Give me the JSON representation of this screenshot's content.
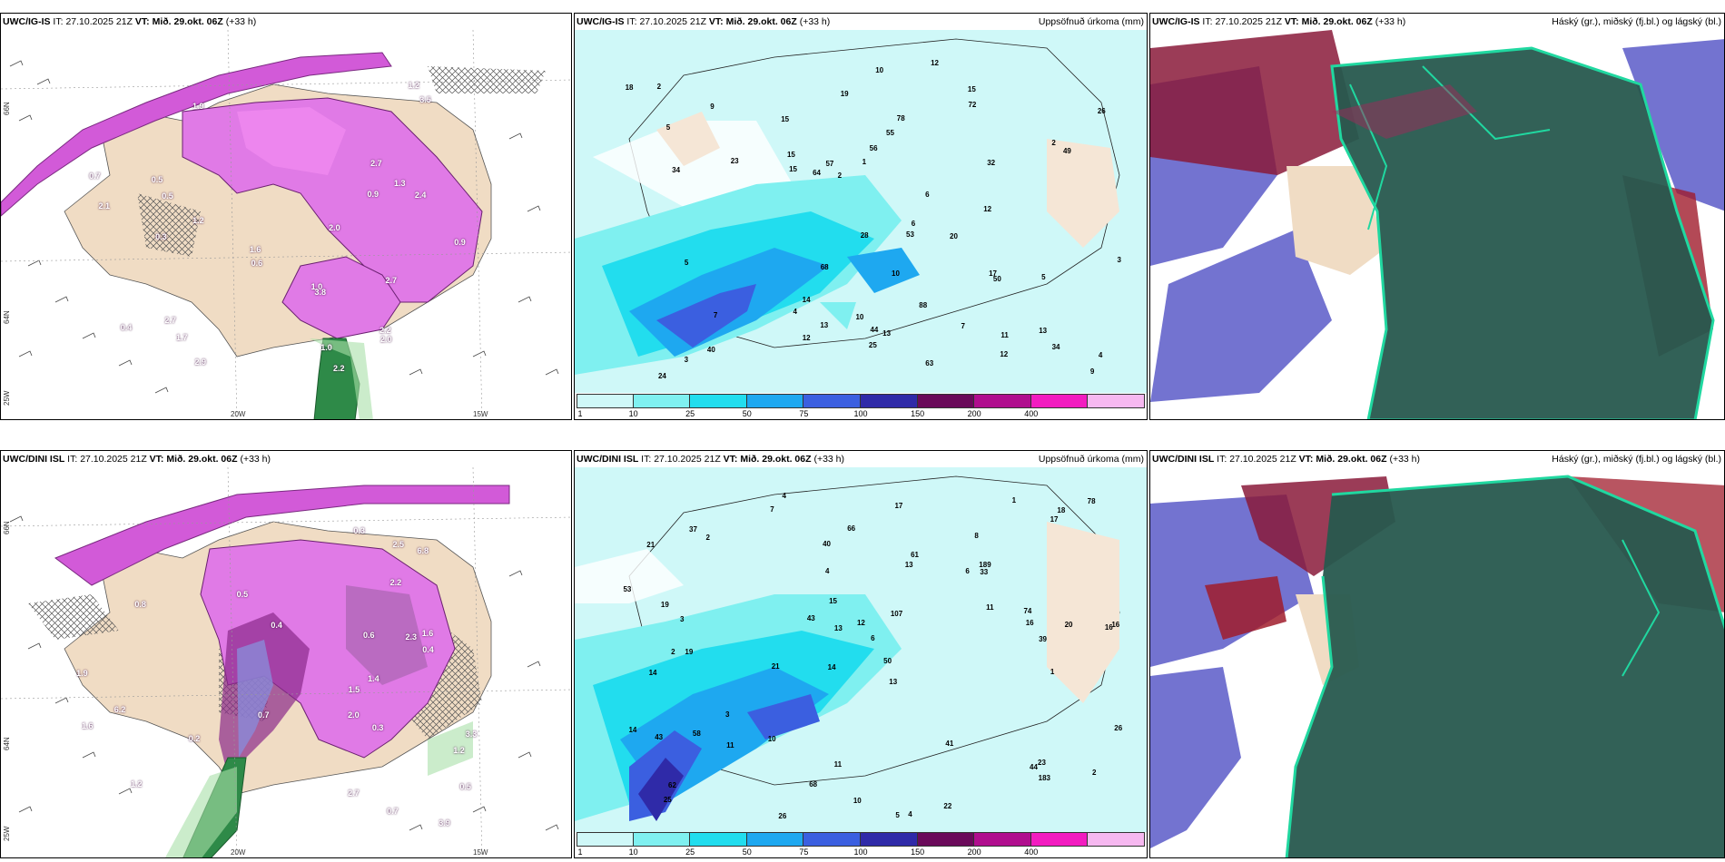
{
  "rows": [
    {
      "model": "UWC/IG-IS",
      "it_label": "IT:",
      "it_value": "27.10.2025 21Z",
      "vt_label": "VT:",
      "vt_value": "Mið. 29.okt. 06Z",
      "lead": "(+33 h)"
    },
    {
      "model": "UWC/DINI ISL",
      "it_label": "IT:",
      "it_value": "27.10.2025 21Z",
      "vt_label": "VT:",
      "vt_value": "Mið. 29.okt. 06Z",
      "lead": "(+33 h)"
    }
  ],
  "precip_title": "Uppsöfnuð úrkoma (mm)",
  "cloud_title": "Háský (gr.), miðský (fj.bl.) og lágský (bl.)",
  "colorbar": {
    "labels": [
      "1",
      "10",
      "25",
      "50",
      "75",
      "100",
      "150",
      "200",
      "400"
    ],
    "colors": [
      "#cff8f8",
      "#7ff0f0",
      "#22ddee",
      "#1ea8f0",
      "#3b5fe0",
      "#2f2aa8",
      "#6a0a5a",
      "#b00e8e",
      "#f21cc0",
      "#f6b8f0"
    ]
  },
  "axis_labels": {
    "lon_20": "20W",
    "lon_15": "15W",
    "lat_66": "66N",
    "lat_64": "64N",
    "lon_25": "25W"
  },
  "precip_values_top": [
    "3",
    "5",
    "6",
    "10",
    "19",
    "12",
    "13",
    "15",
    "11",
    "4",
    "9",
    "15",
    "13",
    "10",
    "7",
    "15",
    "17",
    "5",
    "28",
    "26",
    "18",
    "40",
    "25",
    "20",
    "50",
    "72",
    "57",
    "55",
    "49",
    "88",
    "34",
    "68",
    "78",
    "24",
    "53",
    "63",
    "44",
    "32",
    "34",
    "10",
    "23",
    "14",
    "15",
    "12",
    "12",
    "64",
    "56",
    "13",
    "3",
    "4",
    "5",
    "1",
    "2",
    "12",
    "7",
    "9",
    "2",
    "2",
    "6"
  ],
  "precip_values_bottom": [
    "4",
    "8",
    "16",
    "14",
    "13",
    "19",
    "21",
    "6",
    "14",
    "13",
    "6",
    "25",
    "7",
    "21",
    "5",
    "4",
    "11",
    "1",
    "11",
    "3",
    "3",
    "2",
    "16",
    "20",
    "14",
    "19",
    "13",
    "16",
    "23",
    "43",
    "44",
    "61",
    "58",
    "43",
    "41",
    "26",
    "74",
    "68",
    "78",
    "66",
    "62",
    "26",
    "22",
    "37",
    "10",
    "33",
    "183",
    "189",
    "53",
    "50",
    "40",
    "39",
    "107",
    "17",
    "17",
    "11",
    "15",
    "12",
    "18",
    "4",
    "2",
    "1",
    "2",
    "10"
  ],
  "ptype_values_top": [
    "2.2",
    "1.9",
    "2.7",
    "0.5",
    "1.3",
    "1.0",
    "0.9",
    "1.2",
    "0.6",
    "1.7",
    "0.4",
    "0.7",
    "1.6",
    "1.0",
    "0.9",
    "1.2",
    "2.1",
    "3.5",
    "2.7",
    "2.4",
    "2.2",
    "3.8",
    "2.9",
    "2.0",
    "2.0",
    "2.7",
    "0.3",
    "0.5"
  ],
  "ptype_values_bottom": [
    "2.0",
    "3.3",
    "2.3",
    "1.2",
    "2.7",
    "2.2",
    "1.6",
    "0.4",
    "0.5",
    "0.7",
    "1.4",
    "1.5",
    "1.6",
    "0.3",
    "0.2",
    "3.9",
    "6.8",
    "6.2",
    "2.5",
    "0.5",
    "0.7",
    "1.9",
    "0.6",
    "0.3",
    "0.4",
    "1.2",
    "0.8"
  ]
}
